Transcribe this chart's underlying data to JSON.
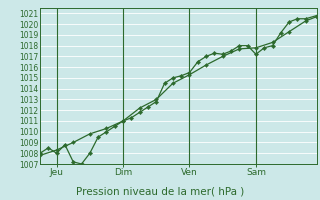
{
  "xlabel": "Pression niveau de la mer( hPa )",
  "ylim": [
    1007,
    1021.5
  ],
  "xlim": [
    0,
    100
  ],
  "yticks": [
    1007,
    1008,
    1009,
    1010,
    1011,
    1012,
    1013,
    1014,
    1015,
    1016,
    1017,
    1018,
    1019,
    1020,
    1021
  ],
  "xtick_positions": [
    6,
    30,
    54,
    78
  ],
  "xtick_labels": [
    "Jeu",
    "Dim",
    "Ven",
    "Sam"
  ],
  "vlines": [
    6,
    30,
    54,
    78
  ],
  "bg_color": "#cce8e8",
  "grid_color": "#ffffff",
  "line_color": "#2d6a2d",
  "line1_x": [
    0,
    3,
    6,
    9,
    12,
    15,
    18,
    21,
    24,
    27,
    30,
    33,
    36,
    39,
    42,
    45,
    48,
    51,
    54,
    57,
    60,
    63,
    66,
    69,
    72,
    75,
    78,
    81,
    84,
    87,
    90,
    93,
    96,
    100
  ],
  "line1_y": [
    1008.0,
    1008.5,
    1008.0,
    1008.8,
    1007.2,
    1007.0,
    1008.0,
    1009.5,
    1010.0,
    1010.5,
    1011.0,
    1011.3,
    1011.8,
    1012.3,
    1012.8,
    1014.5,
    1015.0,
    1015.2,
    1015.5,
    1016.5,
    1017.0,
    1017.3,
    1017.2,
    1017.5,
    1018.0,
    1018.0,
    1017.2,
    1017.8,
    1018.0,
    1019.2,
    1020.2,
    1020.5,
    1020.5,
    1020.8
  ],
  "line2_x": [
    0,
    6,
    12,
    18,
    24,
    30,
    36,
    42,
    48,
    54,
    60,
    66,
    72,
    78,
    84,
    90,
    96,
    100
  ],
  "line2_y": [
    1007.8,
    1008.3,
    1009.0,
    1009.8,
    1010.3,
    1011.0,
    1012.2,
    1013.0,
    1014.5,
    1015.3,
    1016.2,
    1017.0,
    1017.7,
    1017.8,
    1018.3,
    1019.3,
    1020.3,
    1020.7
  ]
}
